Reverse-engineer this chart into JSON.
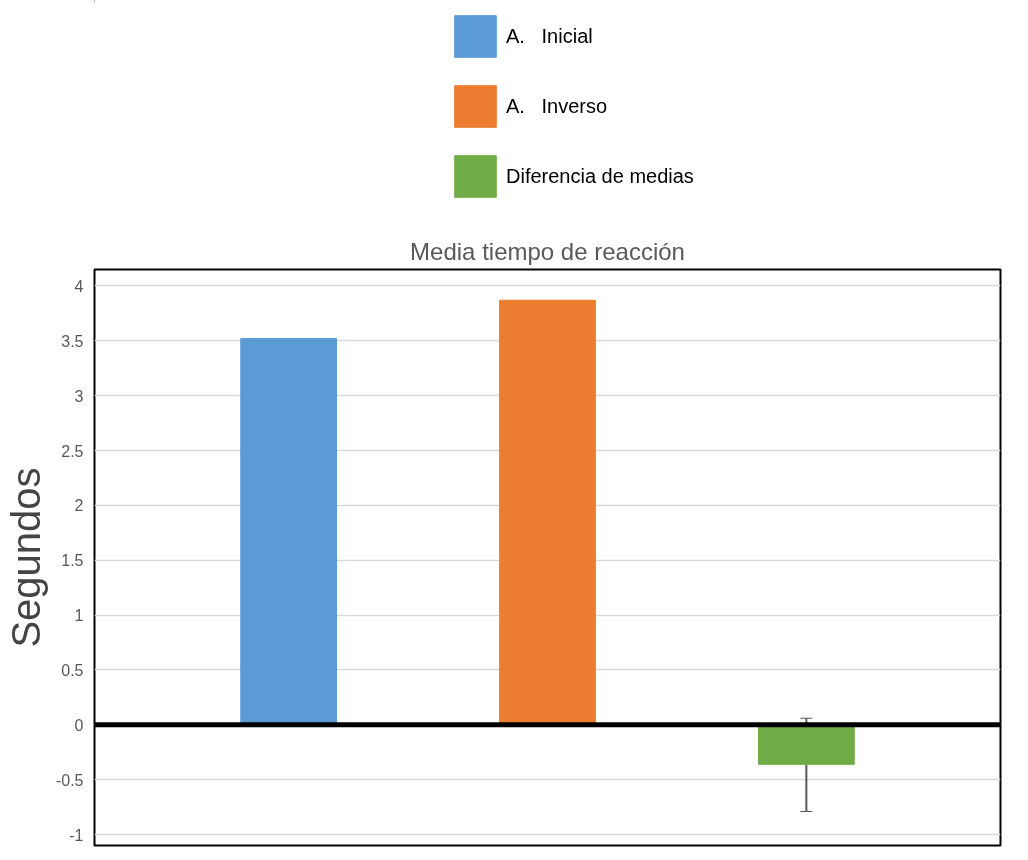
{
  "chart_data": {
    "type": "bar",
    "title": "Media tiempo de reacción",
    "ylabel": "Segundos",
    "categories": [
      null,
      null,
      null
    ],
    "series": [
      {
        "name": "A.   Inicial",
        "color": "#5b9bd5",
        "values": [
          3.52,
          null,
          null
        ]
      },
      {
        "name": "A.   Inverso",
        "color": "#ed7d31",
        "values": [
          null,
          3.87,
          null
        ]
      },
      {
        "name": "Diferencia de medias",
        "color": "#70ad47",
        "values": [
          null,
          null,
          -0.36
        ],
        "errors": [
          null,
          null,
          [
            -0.79,
            0.06
          ]
        ]
      }
    ],
    "ylim": [
      -1.1,
      4.15
    ],
    "yticks": [
      -1,
      -0.5,
      0,
      0.5,
      1,
      1.5,
      2,
      2.5,
      3,
      3.5,
      4
    ],
    "ref_lines": [
      {
        "axis": "y",
        "value": 0,
        "color": "#000000"
      }
    ],
    "grid": "y",
    "legend": "top"
  }
}
